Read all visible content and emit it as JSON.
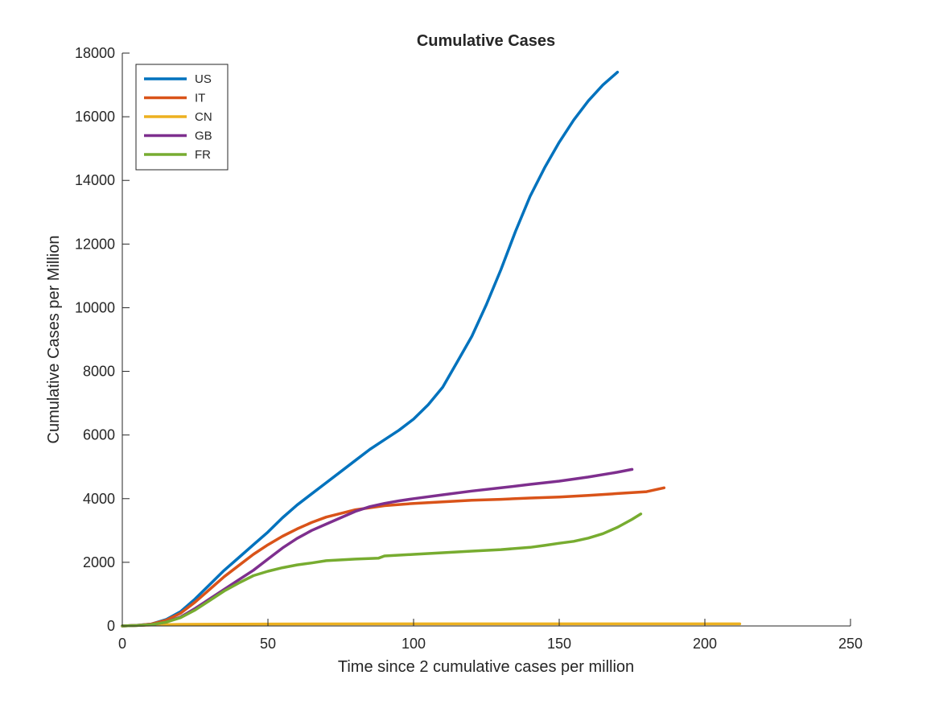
{
  "chart_data": {
    "type": "line",
    "title": "Cumulative Cases",
    "xlabel": "Time since 2 cumulative cases per million",
    "ylabel": "Cumulative Cases per Million",
    "xlim": [
      0,
      250
    ],
    "ylim": [
      0,
      18000
    ],
    "xticks": [
      0,
      50,
      100,
      150,
      200,
      250
    ],
    "yticks": [
      0,
      2000,
      4000,
      6000,
      8000,
      10000,
      12000,
      14000,
      16000,
      18000
    ],
    "grid": false,
    "legend_position": "top-left",
    "series": [
      {
        "name": "US",
        "color": "#0072BD",
        "x": [
          0,
          5,
          10,
          15,
          20,
          25,
          30,
          35,
          40,
          45,
          50,
          55,
          60,
          65,
          70,
          75,
          80,
          85,
          90,
          95,
          100,
          105,
          110,
          115,
          120,
          125,
          130,
          135,
          140,
          145,
          150,
          155,
          160,
          165,
          170
        ],
        "y": [
          0,
          20,
          60,
          200,
          450,
          850,
          1300,
          1750,
          2150,
          2550,
          2950,
          3400,
          3800,
          4150,
          4500,
          4850,
          5200,
          5550,
          5850,
          6150,
          6500,
          6950,
          7500,
          8300,
          9100,
          10100,
          11200,
          12400,
          13500,
          14400,
          15200,
          15900,
          16500,
          17000,
          17400
        ]
      },
      {
        "name": "IT",
        "color": "#D95319",
        "x": [
          0,
          5,
          10,
          15,
          20,
          25,
          30,
          35,
          40,
          45,
          50,
          55,
          60,
          65,
          70,
          80,
          90,
          100,
          110,
          120,
          130,
          140,
          150,
          160,
          170,
          180,
          186
        ],
        "y": [
          0,
          20,
          60,
          180,
          400,
          750,
          1150,
          1550,
          1900,
          2250,
          2550,
          2820,
          3050,
          3250,
          3420,
          3650,
          3780,
          3850,
          3900,
          3950,
          3980,
          4020,
          4050,
          4100,
          4160,
          4220,
          4340
        ]
      },
      {
        "name": "CN",
        "color": "#EDB120",
        "x": [
          0,
          10,
          20,
          50,
          100,
          150,
          200,
          212
        ],
        "y": [
          0,
          30,
          50,
          60,
          65,
          65,
          65,
          65
        ]
      },
      {
        "name": "GB",
        "color": "#7E2F8E",
        "x": [
          0,
          5,
          10,
          15,
          20,
          25,
          30,
          35,
          40,
          45,
          50,
          55,
          60,
          65,
          70,
          75,
          80,
          85,
          90,
          95,
          100,
          110,
          120,
          130,
          140,
          150,
          160,
          170,
          175
        ],
        "y": [
          0,
          15,
          40,
          120,
          280,
          550,
          850,
          1150,
          1450,
          1750,
          2100,
          2450,
          2750,
          3000,
          3200,
          3400,
          3600,
          3750,
          3850,
          3930,
          4000,
          4120,
          4240,
          4340,
          4450,
          4550,
          4680,
          4830,
          4920
        ]
      },
      {
        "name": "FR",
        "color": "#77AC30",
        "x": [
          0,
          5,
          10,
          15,
          20,
          25,
          30,
          35,
          40,
          45,
          50,
          55,
          60,
          65,
          70,
          80,
          88,
          90,
          100,
          110,
          120,
          130,
          140,
          145,
          150,
          155,
          160,
          165,
          170,
          175,
          178
        ],
        "y": [
          0,
          15,
          40,
          120,
          260,
          500,
          800,
          1100,
          1350,
          1580,
          1720,
          1830,
          1920,
          1980,
          2050,
          2100,
          2130,
          2200,
          2250,
          2300,
          2350,
          2400,
          2470,
          2530,
          2600,
          2660,
          2760,
          2900,
          3100,
          3350,
          3520
        ]
      }
    ]
  }
}
